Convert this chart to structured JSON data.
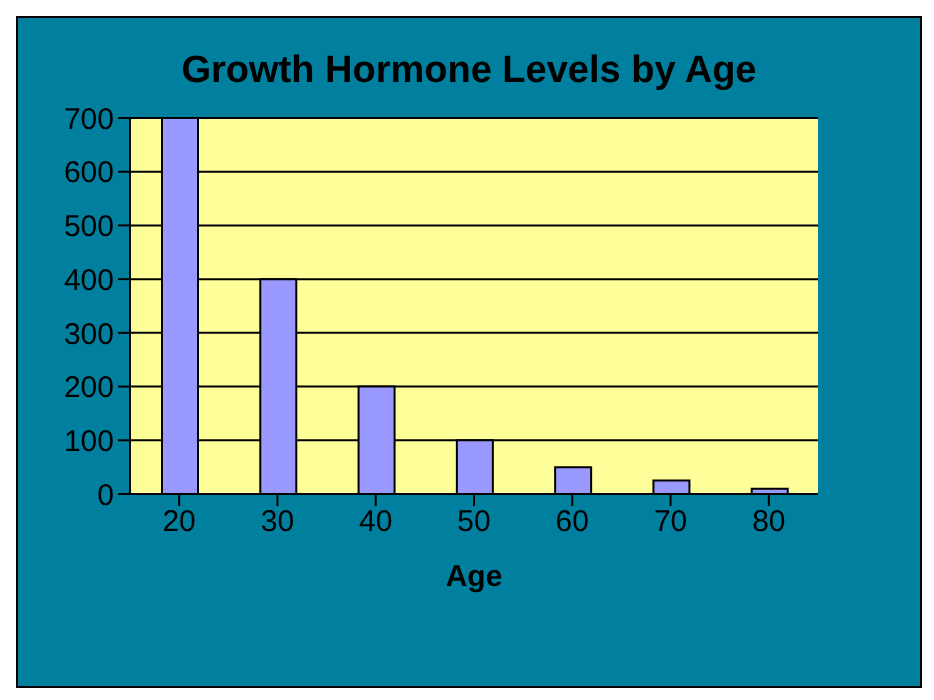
{
  "chart_data": {
    "type": "bar",
    "title": "Growth Hormone Levels by Age",
    "xlabel": "Age",
    "categories": [
      "20",
      "30",
      "40",
      "50",
      "60",
      "70",
      "80"
    ],
    "values": [
      700,
      400,
      200,
      100,
      50,
      25,
      10
    ],
    "color": "#9999ff",
    "ylim": [
      0,
      700
    ],
    "yticks": [
      0,
      100,
      200,
      300,
      400,
      500,
      600,
      700
    ],
    "grid": "y"
  }
}
